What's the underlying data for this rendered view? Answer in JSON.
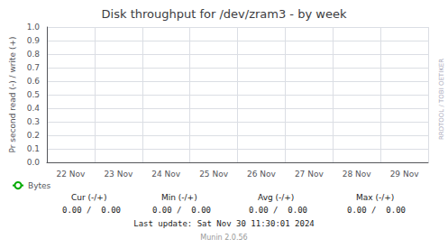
{
  "chart_data": {
    "type": "line",
    "title": "Disk throughput for /dev/zram3 - by week",
    "y_label": "Pr second read (-) / write (+)",
    "categories": [
      "22 Nov",
      "23 Nov",
      "24 Nov",
      "25 Nov",
      "26 Nov",
      "27 Nov",
      "28 Nov",
      "29 Nov"
    ],
    "series": [
      {
        "name": "Bytes",
        "color": "#00aa00",
        "values": [
          null,
          null,
          null,
          null,
          null,
          null,
          null,
          null
        ]
      }
    ],
    "ylim": [
      0.0,
      1.0
    ],
    "yticks": [
      {
        "value": 0.0,
        "label": "0.0"
      },
      0.1,
      0.2,
      0.3,
      0.4,
      0.5,
      0.6,
      0.7,
      0.8,
      0.9,
      {
        "value": 1.0,
        "label": "1.0"
      }
    ],
    "grid": true,
    "legend": "lower left",
    "annotations": [
      "Cur (-/+)",
      "Min (-/+)",
      "Avg (-/+)",
      "Max (-/+)",
      "0.00 /  0.00",
      "0.00 /  0.00",
      "0.00 /  0.00",
      "0.00 /  0.00",
      "Last update: Sat Nov 30 11:30:01 2024",
      "Munin 2.0.56",
      "RRDTOOL / TOBI OETIKER"
    ]
  }
}
